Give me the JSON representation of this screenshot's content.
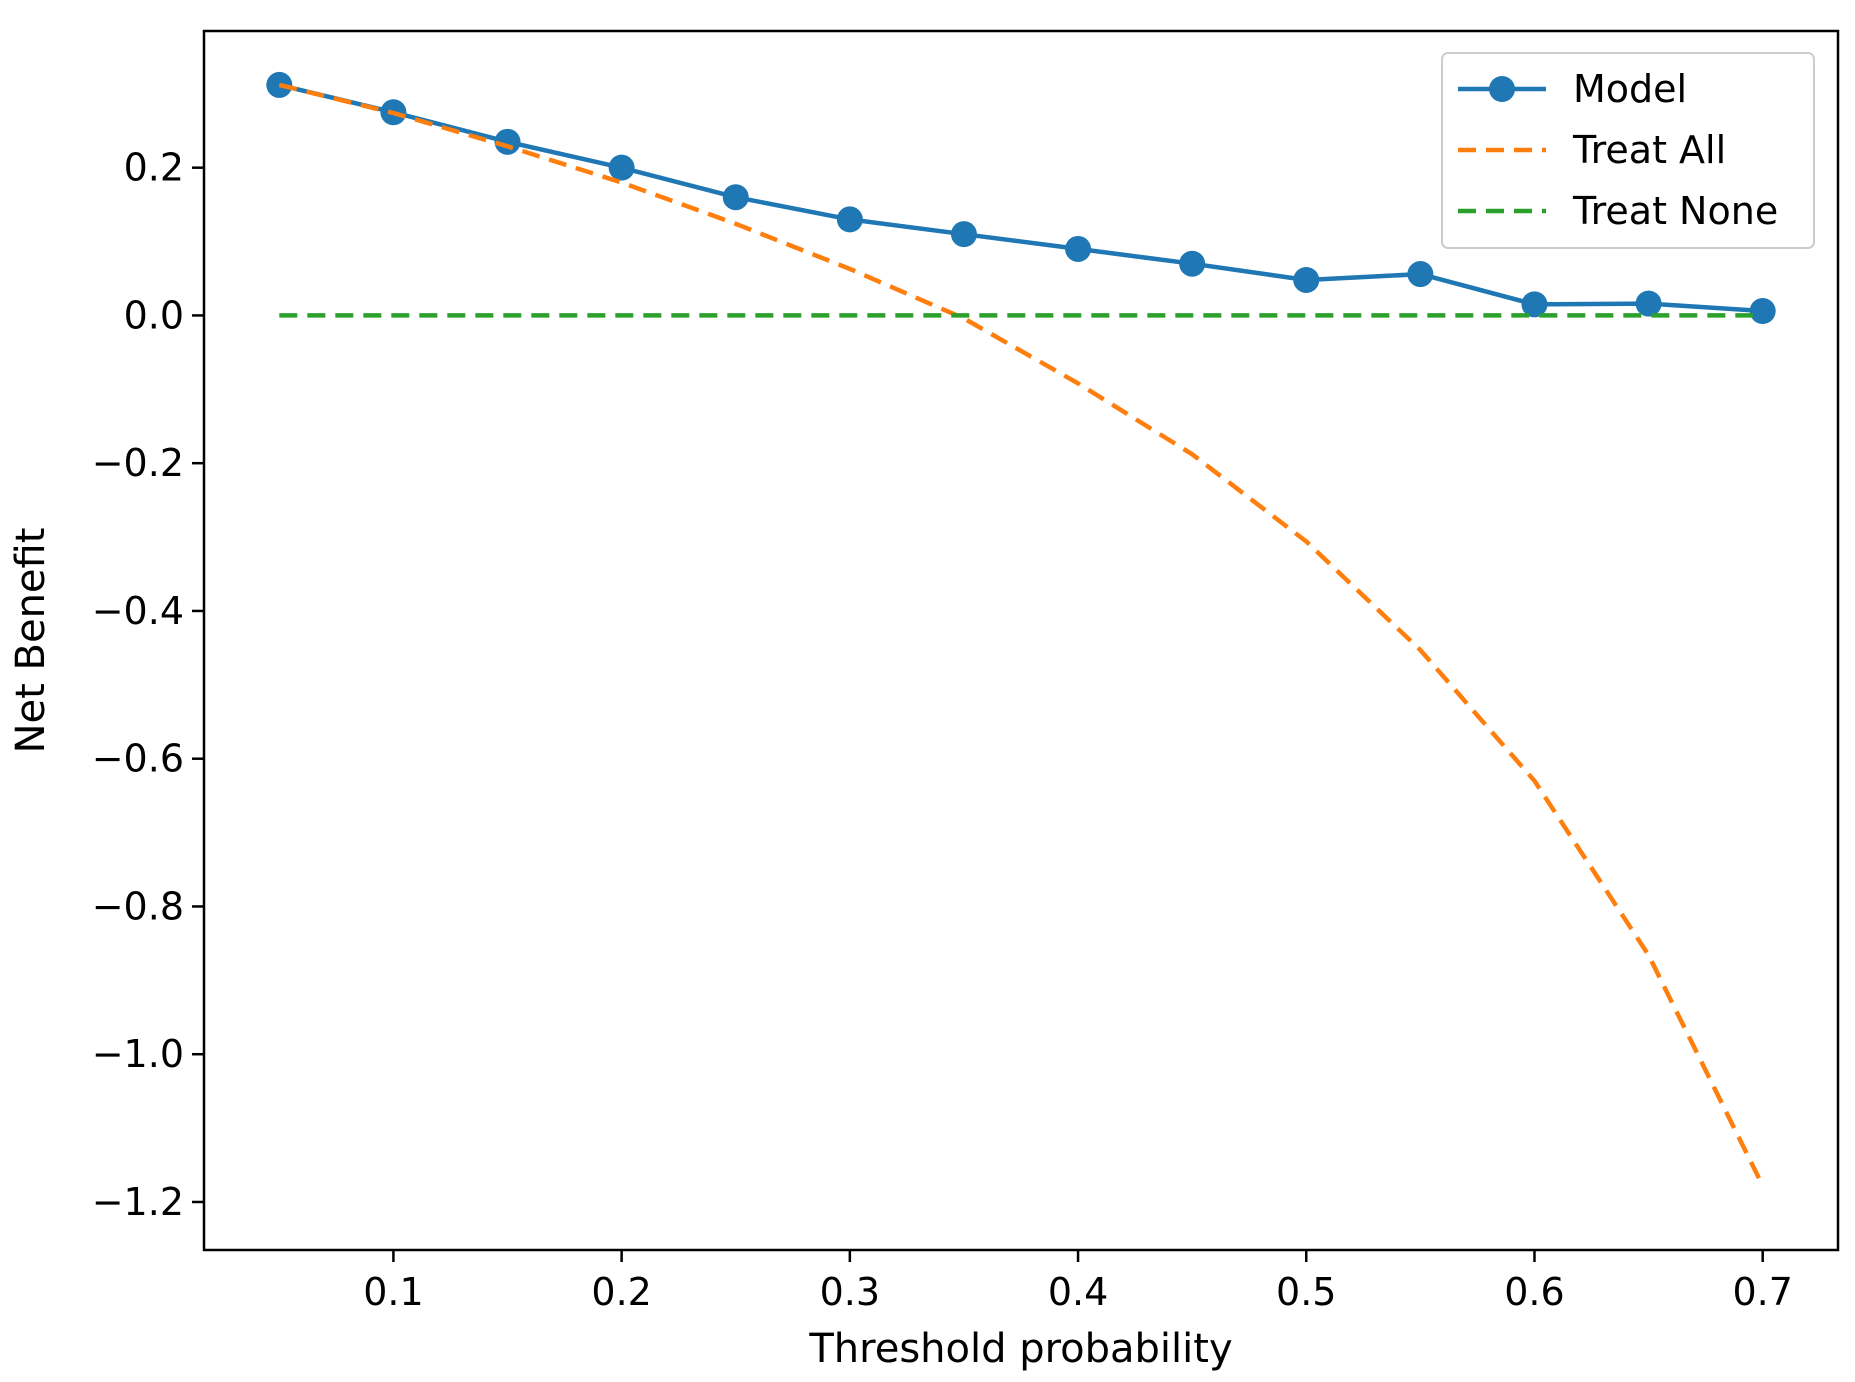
{
  "chart_data": {
    "type": "line",
    "title": "",
    "xlabel": "Threshold probability",
    "ylabel": "Net Benefit",
    "xlim": [
      0.017,
      0.733
    ],
    "ylim": [
      -1.265,
      0.385
    ],
    "xticks": [
      0.1,
      0.2,
      0.3,
      0.4,
      0.5,
      0.6,
      0.7
    ],
    "xtick_labels": [
      "0.1",
      "0.2",
      "0.3",
      "0.4",
      "0.5",
      "0.6",
      "0.7"
    ],
    "yticks": [
      0.2,
      0.0,
      -0.2,
      -0.4,
      -0.6,
      -0.8,
      -1.0,
      -1.2
    ],
    "ytick_labels": [
      "0.2",
      "0.0",
      "−0.2",
      "−0.4",
      "−0.6",
      "−0.8",
      "−1.0",
      "−1.2"
    ],
    "grid": false,
    "legend_position": "top-right",
    "series": [
      {
        "name": "Model",
        "style": "solid-markers",
        "color": "#1f77b4",
        "x": [
          0.05,
          0.1,
          0.15,
          0.2,
          0.25,
          0.3,
          0.35,
          0.4,
          0.45,
          0.5,
          0.55,
          0.6,
          0.65,
          0.7
        ],
        "y": [
          0.312,
          0.275,
          0.235,
          0.2,
          0.16,
          0.13,
          0.11,
          0.09,
          0.07,
          0.048,
          0.056,
          0.015,
          0.016,
          0.006
        ]
      },
      {
        "name": "Treat All",
        "style": "dashed",
        "color": "#ff7f0e",
        "x": [
          0.05,
          0.1,
          0.15,
          0.2,
          0.25,
          0.3,
          0.35,
          0.4,
          0.45,
          0.5,
          0.55,
          0.6,
          0.65,
          0.7
        ],
        "y": [
          0.312,
          0.274,
          0.229,
          0.18,
          0.124,
          0.063,
          -0.004,
          -0.092,
          -0.188,
          -0.306,
          -0.453,
          -0.63,
          -0.866,
          -1.178
        ]
      },
      {
        "name": "Treat None",
        "style": "dashed",
        "color": "#2ca02c",
        "x": [
          0.05,
          0.7
        ],
        "y": [
          0.0,
          0.0
        ]
      }
    ]
  }
}
